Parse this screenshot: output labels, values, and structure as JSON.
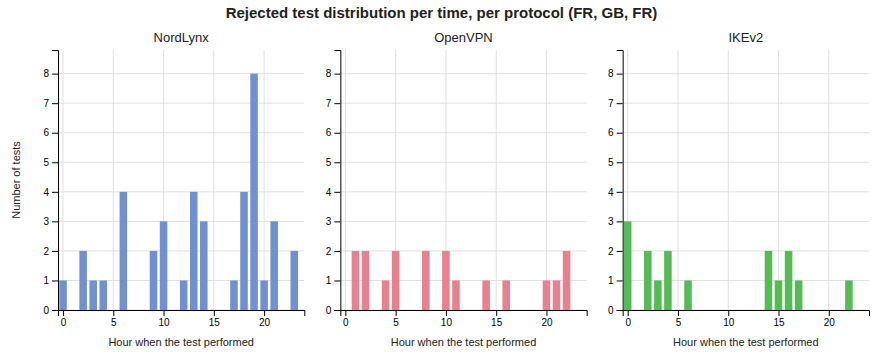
{
  "title": "Rejected test distribution per time, per protocol (FR, GB, FR)",
  "chart_data": [
    {
      "type": "bar",
      "title": "NordLynx",
      "xlabel": "Hour when the test performed",
      "ylabel": "Number of tests",
      "x": [
        0,
        2,
        3,
        4,
        6,
        9,
        10,
        12,
        13,
        14,
        17,
        18,
        19,
        20,
        21,
        23
      ],
      "values": [
        1,
        2,
        1,
        1,
        4,
        2,
        3,
        1,
        4,
        3,
        1,
        4,
        8,
        1,
        3,
        2
      ],
      "color": "#7090D0",
      "xlim": [
        -0.5,
        24
      ],
      "xticks": [
        0,
        5,
        10,
        15,
        20
      ],
      "ylim": [
        0,
        8.8
      ],
      "yticks": [
        0,
        1,
        2,
        3,
        4,
        5,
        6,
        7,
        8
      ],
      "grid": true
    },
    {
      "type": "bar",
      "title": "OpenVPN",
      "xlabel": "Hour when the test performed",
      "x": [
        1,
        2,
        4,
        5,
        8,
        10,
        11,
        14,
        16,
        20,
        21,
        22
      ],
      "values": [
        2,
        2,
        1,
        2,
        2,
        2,
        1,
        1,
        1,
        1,
        1,
        2
      ],
      "color": "#E88090",
      "xlim": [
        -0.5,
        24
      ],
      "xticks": [
        0,
        5,
        10,
        15,
        20
      ],
      "ylim": [
        0,
        8.8
      ],
      "yticks": [
        0,
        1,
        2,
        3,
        4,
        5,
        6,
        7,
        8
      ],
      "grid": true
    },
    {
      "type": "bar",
      "title": "IKEv2",
      "xlabel": "Hour when the test performed",
      "x": [
        0,
        2,
        3,
        4,
        6,
        14,
        15,
        16,
        17,
        22
      ],
      "values": [
        3,
        2,
        1,
        2,
        1,
        2,
        1,
        2,
        1,
        1
      ],
      "color": "#55BB55",
      "xlim": [
        -0.5,
        24
      ],
      "xticks": [
        0,
        5,
        10,
        15,
        20
      ],
      "ylim": [
        0,
        8.8
      ],
      "yticks": [
        0,
        1,
        2,
        3,
        4,
        5,
        6,
        7,
        8
      ],
      "grid": true
    }
  ]
}
